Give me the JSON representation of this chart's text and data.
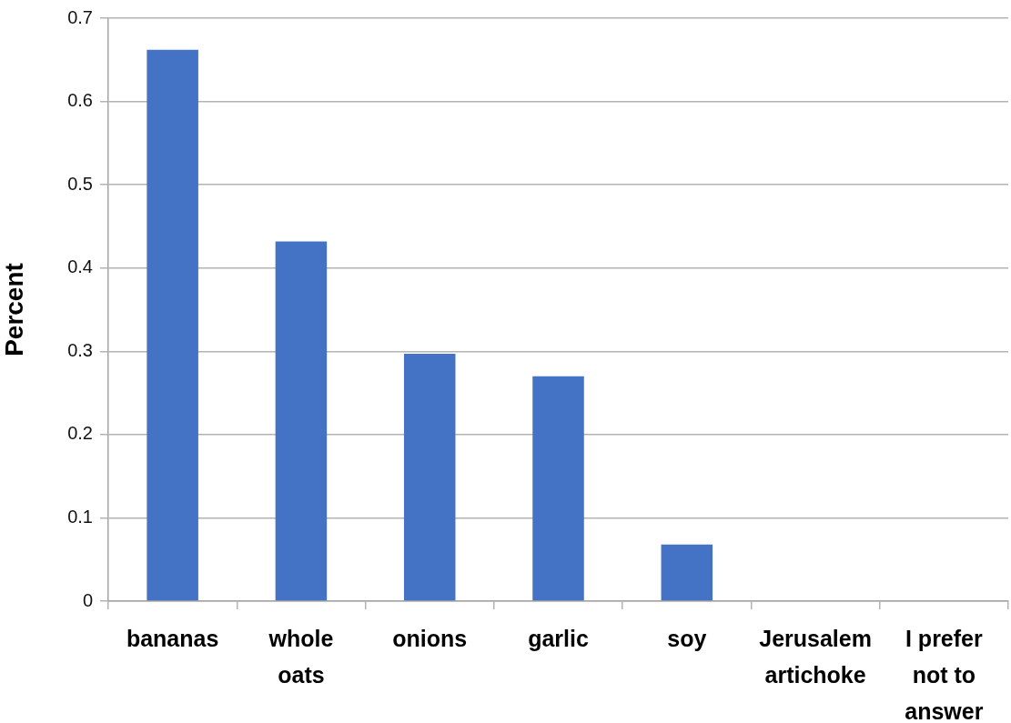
{
  "chart_data": {
    "type": "bar",
    "ylabel": "Percent",
    "categories": [
      "bananas",
      "whole oats",
      "onions",
      "garlic",
      "soy",
      "Jerusalem artichoke",
      "I prefer not to answer"
    ],
    "values": [
      0.662,
      0.432,
      0.297,
      0.27,
      0.068,
      0,
      0
    ],
    "color": "#4472c4",
    "ylim": [
      0,
      0.7
    ],
    "yticks": [
      0,
      0.1,
      0.2,
      0.3,
      0.4,
      0.5,
      0.6,
      0.7
    ],
    "grid": "y"
  }
}
